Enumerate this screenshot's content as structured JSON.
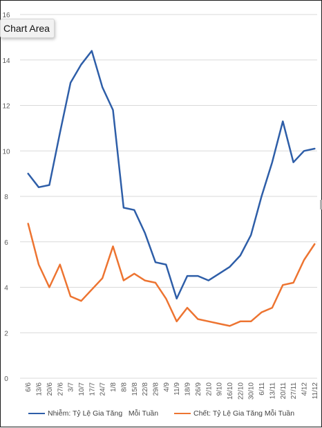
{
  "tooltip": {
    "label": "Chart Area"
  },
  "chart_data": {
    "type": "line",
    "title": "",
    "xlabel": "",
    "ylabel": "",
    "ylim": [
      0,
      16
    ],
    "yticks": [
      0,
      2,
      4,
      6,
      8,
      10,
      12,
      14,
      16
    ],
    "grid": true,
    "legend_position": "bottom",
    "categories": [
      "6/6",
      "13/6",
      "20/6",
      "27/6",
      "3/7",
      "10/7",
      "17/7",
      "24/7",
      "1/8",
      "8/8",
      "15/8",
      "22/8",
      "29/8",
      "4/9",
      "11/9",
      "18/9",
      "26/9",
      "2/10",
      "9/10",
      "16/10",
      "22/10",
      "30/10",
      "6/11",
      "13/11",
      "20/11",
      "27/11",
      "4/12",
      "11/12"
    ],
    "series": [
      {
        "name": "Nhiễm: Tỷ Lệ Gia Tăng   Mỗi Tuần",
        "color": "#2e5ea8",
        "values": [
          9.0,
          8.4,
          8.5,
          10.8,
          13.0,
          13.8,
          14.4,
          12.8,
          11.8,
          7.5,
          7.4,
          6.4,
          5.1,
          5.0,
          3.5,
          4.5,
          4.5,
          4.3,
          4.6,
          4.9,
          5.4,
          6.3,
          8.0,
          9.5,
          11.3,
          9.5,
          10.0,
          10.1
        ]
      },
      {
        "name": "Chết: Tỷ Lệ Gia Tăng Mỗi Tuần",
        "color": "#ed7431",
        "values": [
          6.8,
          5.0,
          4.0,
          5.0,
          3.6,
          3.4,
          3.9,
          4.4,
          5.8,
          4.3,
          4.6,
          4.3,
          4.2,
          3.5,
          2.5,
          3.1,
          2.6,
          2.5,
          2.4,
          2.3,
          2.5,
          2.5,
          2.9,
          3.1,
          4.1,
          4.2,
          5.2,
          5.9
        ]
      }
    ]
  }
}
